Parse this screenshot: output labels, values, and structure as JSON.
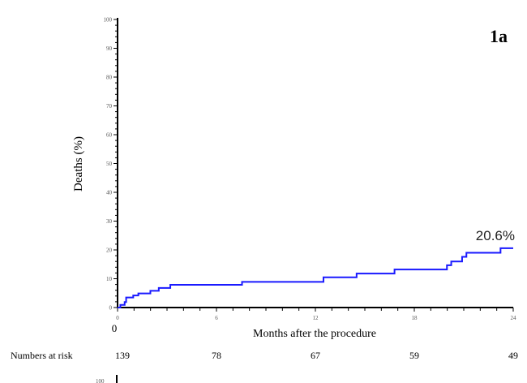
{
  "chart_data": {
    "type": "line",
    "subtype": "kaplan-meier step",
    "panel_label": "1a",
    "xlabel": "Months after the procedure",
    "ylabel": "Deaths (%)",
    "xlim": [
      0,
      24
    ],
    "ylim": [
      0,
      100
    ],
    "xticks": [
      0,
      6,
      12,
      18,
      24
    ],
    "yticks": [
      0,
      10,
      20,
      30,
      40,
      50,
      60,
      70,
      80,
      90,
      100
    ],
    "grid": false,
    "series": [
      {
        "name": "Deaths",
        "color": "#1a1aff",
        "x": [
          0,
          0.17,
          0.43,
          0.52,
          0.95,
          1.26,
          1.99,
          2.5,
          3.2,
          7.55,
          12.49,
          14.5,
          16.8,
          19.98,
          20.24,
          20.9,
          21.16,
          23.23,
          24
        ],
        "y": [
          0,
          0.9,
          1.9,
          3.5,
          4.2,
          4.9,
          5.8,
          6.8,
          7.9,
          8.9,
          10.5,
          11.8,
          13.2,
          14.7,
          16.0,
          17.6,
          19.0,
          20.6,
          20.6
        ]
      }
    ],
    "annotation": "20.6%",
    "risk_table": {
      "label": "Numbers at risk",
      "x": [
        0,
        6,
        12,
        18,
        24
      ],
      "values": [
        "139",
        "78",
        "67",
        "59",
        "49"
      ]
    },
    "next_panel_peek_label": "100"
  }
}
